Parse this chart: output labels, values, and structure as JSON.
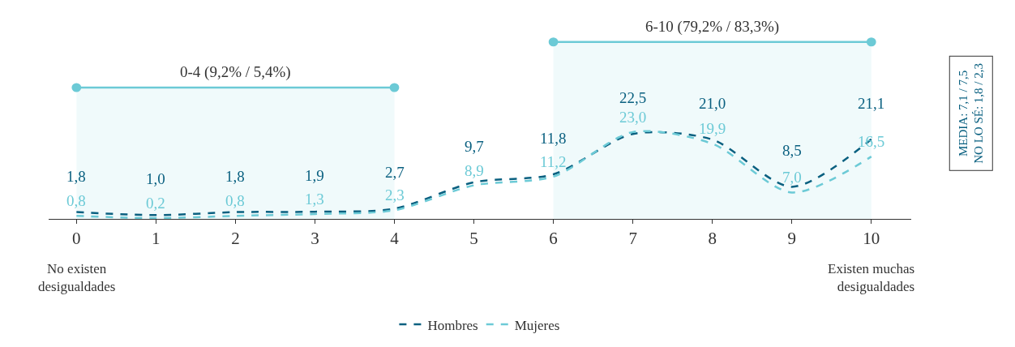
{
  "chart_data": {
    "type": "line",
    "x": [
      0,
      1,
      2,
      3,
      4,
      5,
      6,
      7,
      8,
      9,
      10
    ],
    "xlim": [
      -0.35,
      10.5
    ],
    "xticks": [
      0,
      1,
      2,
      3,
      4,
      5,
      6,
      7,
      8,
      9,
      10
    ],
    "series": [
      {
        "name": "Hombres",
        "color": "#0a6080",
        "values": [
          1.8,
          1.0,
          1.8,
          1.9,
          2.7,
          9.7,
          11.8,
          22.5,
          21.0,
          8.5,
          21.1
        ],
        "value_labels": [
          "1,8",
          "1,0",
          "1,8",
          "1,9",
          "2,7",
          "9,7",
          "11,8",
          "22,5",
          "21,0",
          "8,5",
          "21,1"
        ]
      },
      {
        "name": "Mujeres",
        "color": "#6ccad6",
        "values": [
          0.8,
          0.2,
          0.8,
          1.3,
          2.3,
          8.9,
          11.2,
          23.0,
          19.9,
          7.0,
          16.5
        ],
        "value_labels": [
          "0,8",
          "0,2",
          "0,8",
          "1,3",
          "2,3",
          "8,9",
          "11,2",
          "23,0",
          "19,9",
          "7,0",
          "16,5"
        ]
      }
    ],
    "data_labels": true,
    "line_style": "dashed",
    "marker": "none",
    "grid": false,
    "legend": "bottom",
    "tick_labels": "x",
    "bands": [
      {
        "axis": "x",
        "from": 0,
        "to": 4,
        "label": "0-4 (9,2% / 5,4%)",
        "color": "#6ccad6"
      },
      {
        "axis": "x",
        "from": 6,
        "to": 10,
        "label": "6-10 (79,2% / 83,3%)",
        "color": "#6ccad6"
      }
    ],
    "annotations": [
      "No existen desigualdades",
      "Existen muchas desigualdades",
      "MEDIA: 7,1 / 7,5",
      "NO LO SÉ: 1,8 / 2,3"
    ]
  }
}
